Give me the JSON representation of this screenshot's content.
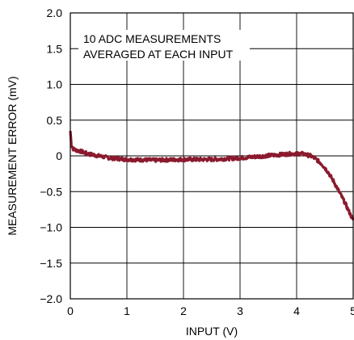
{
  "chart_data": {
    "type": "line",
    "title": "",
    "xlabel": "INPUT (V)",
    "ylabel": "MEASUREMENT ERROR (mV)",
    "xlim": [
      0,
      5
    ],
    "ylim": [
      -2.0,
      2.0
    ],
    "grid": true,
    "x_ticks": [
      "0",
      "1",
      "2",
      "3",
      "4",
      "5"
    ],
    "y_ticks": [
      "2.0",
      "1.5",
      "1.0",
      "0.5",
      "0",
      "−0.5",
      "−1.0",
      "−1.5",
      "−2.0"
    ],
    "annotation": [
      "10 ADC MEASUREMENTS",
      "AVERAGED AT EACH INPUT"
    ],
    "line_color": "#8b1a2e",
    "series": [
      {
        "x": [
          0,
          0.02,
          0.05,
          0.1,
          0.2,
          0.3,
          0.5,
          0.7,
          1.0,
          1.5,
          2.0,
          2.5,
          3.0,
          3.3,
          3.6,
          3.9,
          4.1,
          4.25,
          4.35,
          4.45,
          4.55,
          4.65,
          4.75,
          4.85,
          4.95,
          5.0
        ],
        "y": [
          0.35,
          0.15,
          0.1,
          0.08,
          0.06,
          0.03,
          0.0,
          -0.03,
          -0.05,
          -0.06,
          -0.05,
          -0.05,
          -0.03,
          -0.01,
          0.01,
          0.03,
          0.03,
          0.0,
          -0.05,
          -0.12,
          -0.22,
          -0.35,
          -0.5,
          -0.65,
          -0.82,
          -0.9
        ]
      }
    ]
  }
}
